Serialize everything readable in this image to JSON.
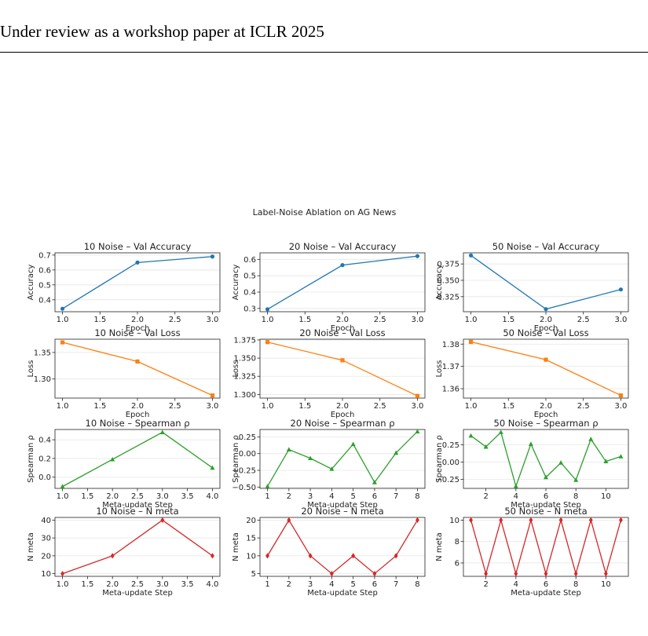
{
  "page": {
    "header": "Under review as a workshop paper at ICLR 2025"
  },
  "chart_data": {
    "suptitle": "Label-Noise Ablation on AG News",
    "grid": "horizontal",
    "colors": {
      "accuracy": "#1f77b4",
      "loss": "#ff7f0e",
      "spearman": "#2ca02c",
      "nmeta": "#d62728"
    },
    "panels": [
      {
        "type": "line",
        "title": "10 Noise – Val Accuracy",
        "xlabel": "Epoch",
        "ylabel": "Accuracy",
        "marker": "circle",
        "color": "#1f77b4",
        "x": [
          1.0,
          2.0,
          3.0
        ],
        "y": [
          0.34,
          0.65,
          0.69
        ],
        "xlim": [
          0.9,
          3.1
        ],
        "ylim": [
          0.32,
          0.715
        ],
        "xticks": [
          1.0,
          1.5,
          2.0,
          2.5,
          3.0
        ],
        "xtick_labels": [
          "1.0",
          "1.5",
          "2.0",
          "2.5",
          "3.0"
        ],
        "yticks": [
          0.4,
          0.5,
          0.6,
          0.7
        ],
        "ytick_labels": [
          "0.4",
          "0.5",
          "0.6",
          "0.7"
        ]
      },
      {
        "type": "line",
        "title": "20 Noise – Val Accuracy",
        "xlabel": "Epoch",
        "ylabel": "Accuracy",
        "marker": "circle",
        "color": "#1f77b4",
        "x": [
          1.0,
          2.0,
          3.0
        ],
        "y": [
          0.295,
          0.565,
          0.62
        ],
        "xlim": [
          0.9,
          3.1
        ],
        "ylim": [
          0.28,
          0.64
        ],
        "xticks": [
          1.0,
          1.5,
          2.0,
          2.5,
          3.0
        ],
        "xtick_labels": [
          "1.0",
          "1.5",
          "2.0",
          "2.5",
          "3.0"
        ],
        "yticks": [
          0.3,
          0.4,
          0.5,
          0.6
        ],
        "ytick_labels": [
          "0.3",
          "0.4",
          "0.5",
          "0.6"
        ]
      },
      {
        "type": "line",
        "title": "50 Noise – Val Accuracy",
        "xlabel": "Epoch",
        "ylabel": "Accuracy",
        "marker": "circle",
        "color": "#1f77b4",
        "x": [
          1.0,
          2.0,
          3.0
        ],
        "y": [
          0.388,
          0.306,
          0.336
        ],
        "xlim": [
          0.9,
          3.1
        ],
        "ylim": [
          0.302,
          0.392
        ],
        "xticks": [
          1.0,
          1.5,
          2.0,
          2.5,
          3.0
        ],
        "xtick_labels": [
          "1.0",
          "1.5",
          "2.0",
          "2.5",
          "3.0"
        ],
        "yticks": [
          0.325,
          0.35,
          0.375
        ],
        "ytick_labels": [
          "0.325",
          "0.350",
          "0.375"
        ]
      },
      {
        "type": "line",
        "title": "10 Noise – Val Loss",
        "xlabel": "Epoch",
        "ylabel": "Loss",
        "marker": "square",
        "color": "#ff7f0e",
        "x": [
          1.0,
          2.0,
          3.0
        ],
        "y": [
          1.369,
          1.333,
          1.269
        ],
        "xlim": [
          0.9,
          3.1
        ],
        "ylim": [
          1.264,
          1.375
        ],
        "xticks": [
          1.0,
          1.5,
          2.0,
          2.5,
          3.0
        ],
        "xtick_labels": [
          "1.0",
          "1.5",
          "2.0",
          "2.5",
          "3.0"
        ],
        "yticks": [
          1.3,
          1.35
        ],
        "ytick_labels": [
          "1.30",
          "1.35"
        ]
      },
      {
        "type": "line",
        "title": "20 Noise – Val Loss",
        "xlabel": "Epoch",
        "ylabel": "Loss",
        "marker": "square",
        "color": "#ff7f0e",
        "x": [
          1.0,
          2.0,
          3.0
        ],
        "y": [
          1.372,
          1.347,
          1.298
        ],
        "xlim": [
          0.9,
          3.1
        ],
        "ylim": [
          1.295,
          1.376
        ],
        "xticks": [
          1.0,
          1.5,
          2.0,
          2.5,
          3.0
        ],
        "xtick_labels": [
          "1.0",
          "1.5",
          "2.0",
          "2.5",
          "3.0"
        ],
        "yticks": [
          1.3,
          1.325,
          1.35,
          1.375
        ],
        "ytick_labels": [
          "1.300",
          "1.325",
          "1.350",
          "1.375"
        ]
      },
      {
        "type": "line",
        "title": "50 Noise – Val Loss",
        "xlabel": "Epoch",
        "ylabel": "Loss",
        "marker": "square",
        "color": "#ff7f0e",
        "x": [
          1.0,
          2.0,
          3.0
        ],
        "y": [
          1.381,
          1.373,
          1.357
        ],
        "xlim": [
          0.9,
          3.1
        ],
        "ylim": [
          1.3558,
          1.3822
        ],
        "xticks": [
          1.0,
          1.5,
          2.0,
          2.5,
          3.0
        ],
        "xtick_labels": [
          "1.0",
          "1.5",
          "2.0",
          "2.5",
          "3.0"
        ],
        "yticks": [
          1.36,
          1.37,
          1.38
        ],
        "ytick_labels": [
          "1.36",
          "1.37",
          "1.38"
        ]
      },
      {
        "type": "line",
        "title": "10 Noise – Spearman ρ",
        "xlabel": "Meta-update Step",
        "ylabel": "Spearman ρ",
        "marker": "triangle",
        "color": "#2ca02c",
        "x": [
          1,
          2,
          3,
          4
        ],
        "y": [
          -0.1,
          0.19,
          0.48,
          0.1
        ],
        "xlim": [
          0.85,
          4.15
        ],
        "ylim": [
          -0.12,
          0.51
        ],
        "xticks": [
          1.0,
          1.5,
          2.0,
          2.5,
          3.0,
          3.5,
          4.0
        ],
        "xtick_labels": [
          "1.0",
          "1.5",
          "2.0",
          "2.5",
          "3.0",
          "3.5",
          "4.0"
        ],
        "yticks": [
          0.0,
          0.2,
          0.4
        ],
        "ytick_labels": [
          "0.0",
          "0.2",
          "0.4"
        ]
      },
      {
        "type": "line",
        "title": "20 Noise – Spearman ρ",
        "xlabel": "Meta-update Step",
        "ylabel": "Spearman ρ",
        "marker": "triangle",
        "color": "#2ca02c",
        "x": [
          1,
          2,
          3,
          4,
          5,
          6,
          7,
          8
        ],
        "y": [
          -0.49,
          0.06,
          -0.07,
          -0.23,
          0.14,
          -0.43,
          0.01,
          0.33
        ],
        "xlim": [
          0.65,
          8.35
        ],
        "ylim": [
          -0.52,
          0.36
        ],
        "xticks": [
          1,
          2,
          3,
          4,
          5,
          6,
          7,
          8
        ],
        "xtick_labels": [
          "1",
          "2",
          "3",
          "4",
          "5",
          "6",
          "7",
          "8"
        ],
        "yticks": [
          -0.5,
          -0.25,
          0.0,
          0.25
        ],
        "ytick_labels": [
          "−0.50",
          "−0.25",
          "0.00",
          "0.25"
        ]
      },
      {
        "type": "line",
        "title": "50 Noise – Spearman ρ",
        "xlabel": "Meta-update Step",
        "ylabel": "Spearman ρ",
        "marker": "triangle",
        "color": "#2ca02c",
        "x": [
          1,
          2,
          3,
          4,
          5,
          6,
          7,
          8,
          9,
          10,
          11
        ],
        "y": [
          0.38,
          0.22,
          0.43,
          -0.35,
          0.26,
          -0.22,
          -0.01,
          -0.26,
          0.33,
          0.01,
          0.08
        ],
        "xlim": [
          0.5,
          11.5
        ],
        "ylim": [
          -0.38,
          0.47
        ],
        "xticks": [
          2,
          4,
          6,
          8,
          10
        ],
        "xtick_labels": [
          "2",
          "4",
          "6",
          "8",
          "10"
        ],
        "yticks": [
          -0.25,
          0.0,
          0.25
        ],
        "ytick_labels": [
          "−0.25",
          "0.00",
          "0.25"
        ]
      },
      {
        "type": "line",
        "title": "10 Noise – N meta",
        "xlabel": "Meta-update Step",
        "ylabel": "N meta",
        "marker": "diamond",
        "color": "#d62728",
        "x": [
          1,
          2,
          3,
          4
        ],
        "y": [
          10,
          20,
          40,
          20
        ],
        "xlim": [
          0.85,
          4.15
        ],
        "ylim": [
          8.5,
          41.5
        ],
        "xticks": [
          1.0,
          1.5,
          2.0,
          2.5,
          3.0,
          3.5,
          4.0
        ],
        "xtick_labels": [
          "1.0",
          "1.5",
          "2.0",
          "2.5",
          "3.0",
          "3.5",
          "4.0"
        ],
        "yticks": [
          10,
          20,
          30,
          40
        ],
        "ytick_labels": [
          "10",
          "20",
          "30",
          "40"
        ]
      },
      {
        "type": "line",
        "title": "20 Noise – N meta",
        "xlabel": "Meta-update Step",
        "ylabel": "N meta",
        "marker": "diamond",
        "color": "#d62728",
        "x": [
          1,
          2,
          3,
          4,
          5,
          6,
          7,
          8
        ],
        "y": [
          10,
          20,
          10,
          5,
          10,
          5,
          10,
          20
        ],
        "xlim": [
          0.65,
          8.35
        ],
        "ylim": [
          4.25,
          20.75
        ],
        "xticks": [
          1,
          2,
          3,
          4,
          5,
          6,
          7,
          8
        ],
        "xtick_labels": [
          "1",
          "2",
          "3",
          "4",
          "5",
          "6",
          "7",
          "8"
        ],
        "yticks": [
          5,
          10,
          15,
          20
        ],
        "ytick_labels": [
          "5",
          "10",
          "15",
          "20"
        ]
      },
      {
        "type": "line",
        "title": "50 Noise – N meta",
        "xlabel": "Meta-update Step",
        "ylabel": "N meta",
        "marker": "diamond",
        "color": "#d62728",
        "x": [
          1,
          2,
          3,
          4,
          5,
          6,
          7,
          8,
          9,
          10,
          11
        ],
        "y": [
          10,
          5,
          10,
          5,
          10,
          5,
          10,
          5,
          10,
          5,
          10
        ],
        "xlim": [
          0.5,
          11.5
        ],
        "ylim": [
          4.75,
          10.25
        ],
        "xticks": [
          2,
          4,
          6,
          8,
          10
        ],
        "xtick_labels": [
          "2",
          "4",
          "6",
          "8",
          "10"
        ],
        "yticks": [
          6,
          8,
          10
        ],
        "ytick_labels": [
          "6",
          "8",
          "10"
        ]
      }
    ]
  }
}
